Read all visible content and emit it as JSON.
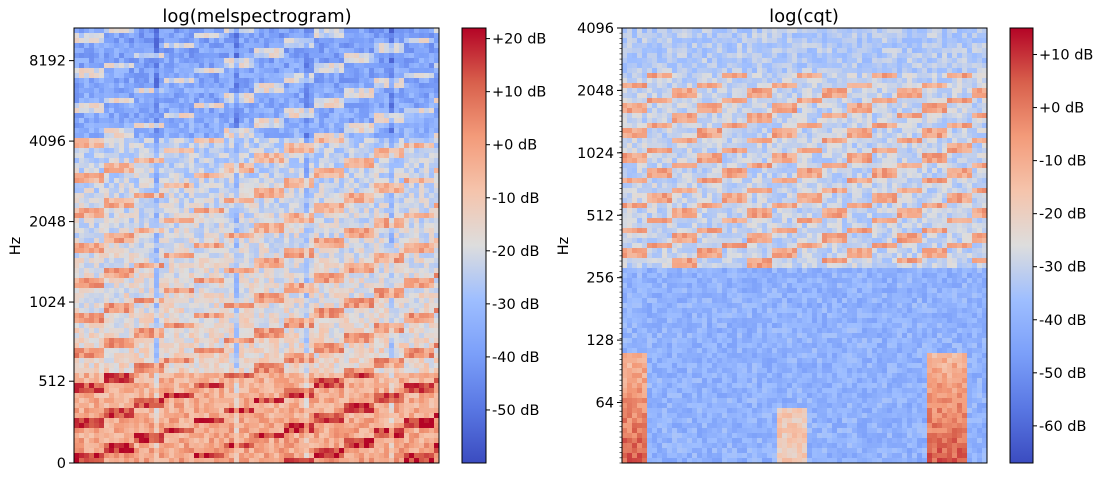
{
  "chart_data": [
    {
      "type": "heatmap",
      "title": "log(melspectrogram)",
      "ylabel": "Hz",
      "xlabel": "",
      "y_scale": "mel",
      "y_ticks": [
        "0",
        "512",
        "1024",
        "2048",
        "4096",
        "8192"
      ],
      "x_ticks": [],
      "colormap": "coolwarm",
      "colorbar": {
        "label_unit": "dB",
        "range": [
          -60,
          22
        ],
        "ticks": [
          "+20 dB",
          "+10 dB",
          "+0 dB",
          "-10 dB",
          "-20 dB",
          "-30 dB",
          "-40 dB",
          "-50 dB"
        ],
        "tick_values": [
          20,
          10,
          0,
          -10,
          -20,
          -30,
          -40,
          -50
        ]
      }
    },
    {
      "type": "heatmap",
      "title": "log(cqt)",
      "ylabel": "Hz",
      "xlabel": "",
      "y_scale": "log2",
      "y_ticks": [
        "64",
        "128",
        "256",
        "512",
        "1024",
        "2048",
        "4096"
      ],
      "x_ticks": [],
      "colormap": "coolwarm",
      "colorbar": {
        "label_unit": "dB",
        "range": [
          -67,
          15
        ],
        "ticks": [
          "+10 dB",
          "+0 dB",
          "-10 dB",
          "-20 dB",
          "-30 dB",
          "-40 dB",
          "-50 dB",
          "-60 dB"
        ],
        "tick_values": [
          10,
          0,
          -10,
          -20,
          -30,
          -40,
          -50,
          -60
        ]
      }
    }
  ],
  "colors": {
    "cmap_low": "#3b4cc0",
    "cmap_mid": "#dddddd",
    "cmap_high": "#b40426"
  }
}
